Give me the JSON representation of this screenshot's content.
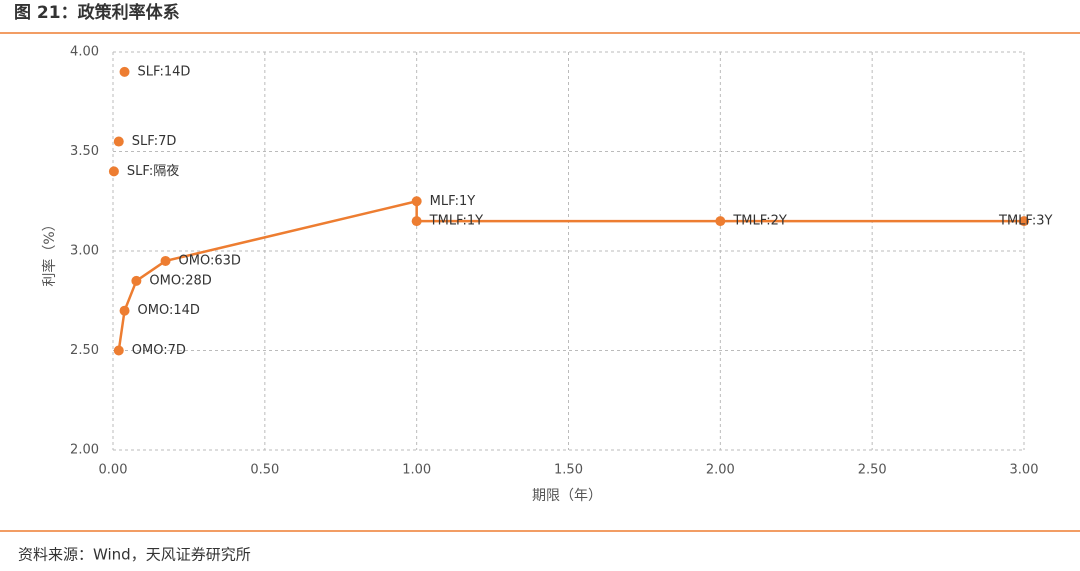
{
  "title": "图 21：政策利率体系",
  "source": "资料来源：Wind，天风证券研究所",
  "chart_data": {
    "type": "scatter",
    "xlabel": "期限（年）",
    "ylabel": "利率（%）",
    "xlim": [
      0,
      3
    ],
    "ylim": [
      2,
      4
    ],
    "xticks": [
      {
        "value": 0,
        "label": "0.00"
      },
      {
        "value": 0.5,
        "label": "0.50"
      },
      {
        "value": 1,
        "label": "1.00"
      },
      {
        "value": 1.5,
        "label": "1.50"
      },
      {
        "value": 2,
        "label": "2.00"
      },
      {
        "value": 2.5,
        "label": "2.50"
      },
      {
        "value": 3,
        "label": "3.00"
      }
    ],
    "yticks": [
      {
        "value": 2,
        "label": "2.00"
      },
      {
        "value": 2.5,
        "label": "2.50"
      },
      {
        "value": 3,
        "label": "3.00"
      },
      {
        "value": 3.5,
        "label": "3.50"
      },
      {
        "value": 4,
        "label": "4.00"
      }
    ],
    "grid": true,
    "series": [
      {
        "color": "#ed7d31",
        "connected": true,
        "x": [
          0.019,
          0.038,
          0.077,
          0.173,
          1,
          1,
          2,
          3
        ],
        "values": [
          2.5,
          2.7,
          2.85,
          2.95,
          3.25,
          3.15,
          3.15,
          3.15
        ],
        "point_labels": [
          "OMO:7D",
          "OMO:14D",
          "OMO:28D",
          "OMO:63D",
          "MLF:1Y",
          "TMLF:1Y",
          "TMLF:2Y",
          "TMLF:3Y"
        ]
      },
      {
        "color": "#ed7d31",
        "connected": false,
        "x": [
          0.003,
          0.019,
          0.038
        ],
        "values": [
          3.4,
          3.55,
          3.9
        ],
        "point_labels": [
          "SLF:隔夜",
          "SLF:7D",
          "SLF:14D"
        ]
      }
    ]
  }
}
